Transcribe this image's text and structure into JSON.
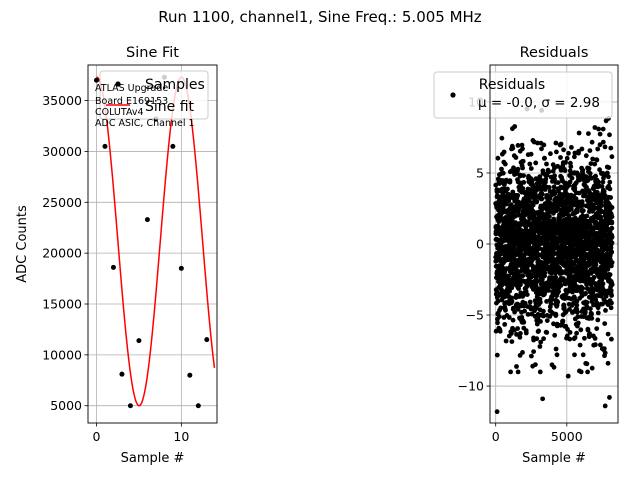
{
  "figure": {
    "suptitle": "Run 1100, channel1, Sine Freq.: 5.005 MHz"
  },
  "chart_data": [
    {
      "type": "scatter",
      "title": "Sine Fit",
      "xlabel": "Sample #",
      "ylabel": "ADC Counts",
      "xlim": [
        -1,
        14.2
      ],
      "ylim": [
        3300,
        38500
      ],
      "xticks": [
        0,
        10
      ],
      "yticks": [
        5000,
        10000,
        15000,
        20000,
        25000,
        30000,
        35000
      ],
      "grid": true,
      "legend_position": "upper-right",
      "annotation": [
        "ATLAS Upgrade",
        "Board E169153",
        "COLUTAv4",
        "ADC ASIC, Channel 1"
      ],
      "series": [
        {
          "name": "Samples",
          "kind": "points",
          "color": "#000000",
          "x": [
            0,
            1,
            2,
            3,
            4,
            5,
            6,
            7,
            8,
            9,
            10,
            11,
            12,
            13
          ],
          "y": [
            37000,
            30500,
            18600,
            8100,
            5000,
            11400,
            23300,
            33200,
            37300,
            30500,
            18500,
            8000,
            5000,
            11500
          ]
        },
        {
          "name": "Sine fit",
          "kind": "line",
          "color": "#ff0000",
          "amplitude": 16150,
          "offset": 21150,
          "period": 9.98,
          "phase_sample": 0.03,
          "x_range": [
            0,
            13.9
          ]
        }
      ]
    },
    {
      "type": "scatter",
      "title": "Residuals",
      "xlabel": "Sample #",
      "ylabel": "",
      "xlim": [
        -400,
        8600
      ],
      "ylim": [
        -12.6,
        12.6
      ],
      "xticks": [
        0,
        5000
      ],
      "yticks": [
        -10,
        -5,
        0,
        5,
        10
      ],
      "grid": true,
      "legend_position": "upper-right",
      "legend_title": "Residuals",
      "series": [
        {
          "name": "μ = -0.0, σ = 2.98",
          "color": "#000000",
          "n": 8192,
          "x_range": [
            0,
            8191
          ],
          "mu": 0.0,
          "sigma": 2.98,
          "outliers": [
            [
              100,
              -11.8
            ],
            [
              3300,
              -10.9
            ],
            [
              7700,
              -11.4
            ],
            [
              8000,
              -10.8
            ],
            [
              5100,
              -9.3
            ],
            [
              2600,
              -8.6
            ],
            [
              7900,
              -8.4
            ]
          ]
        }
      ]
    }
  ]
}
